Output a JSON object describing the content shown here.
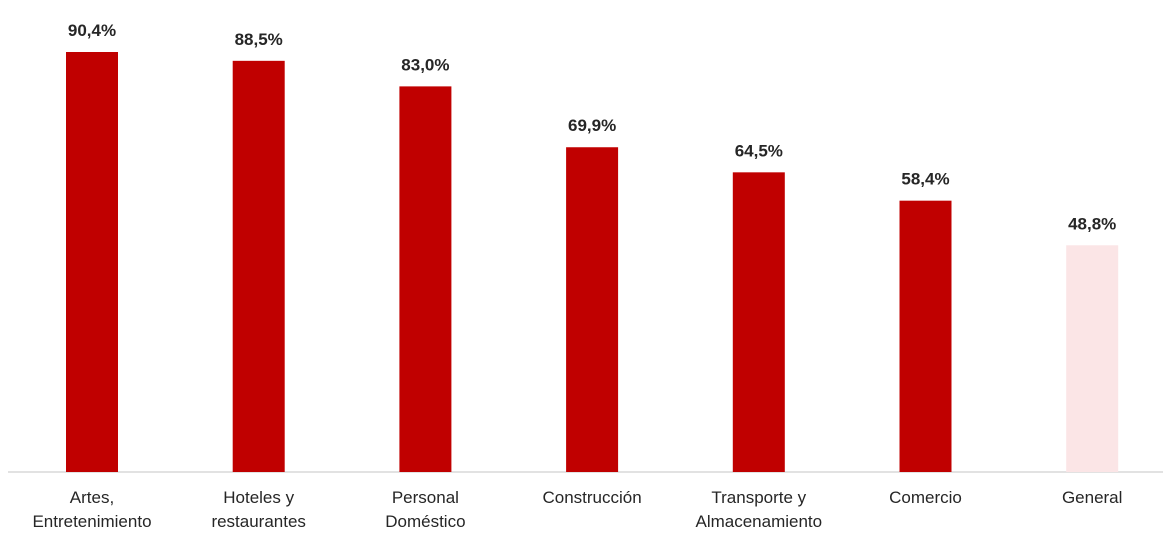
{
  "chart_data": {
    "type": "bar",
    "categories": [
      "Artes, Entretenimiento",
      "Hoteles y restaurantes",
      "Personal Doméstico",
      "Construcción",
      "Transporte y Almacenamiento",
      "Comercio",
      "General"
    ],
    "values": [
      90.4,
      88.5,
      83.0,
      69.9,
      64.5,
      58.4,
      48.8
    ],
    "value_labels": [
      "90,4%",
      "88,5%",
      "83,0%",
      "69,9%",
      "64,5%",
      "58,4%",
      "48,8%"
    ],
    "colors": [
      "#c00000",
      "#c00000",
      "#c00000",
      "#c00000",
      "#c00000",
      "#c00000",
      "#fbe5e6"
    ]
  }
}
